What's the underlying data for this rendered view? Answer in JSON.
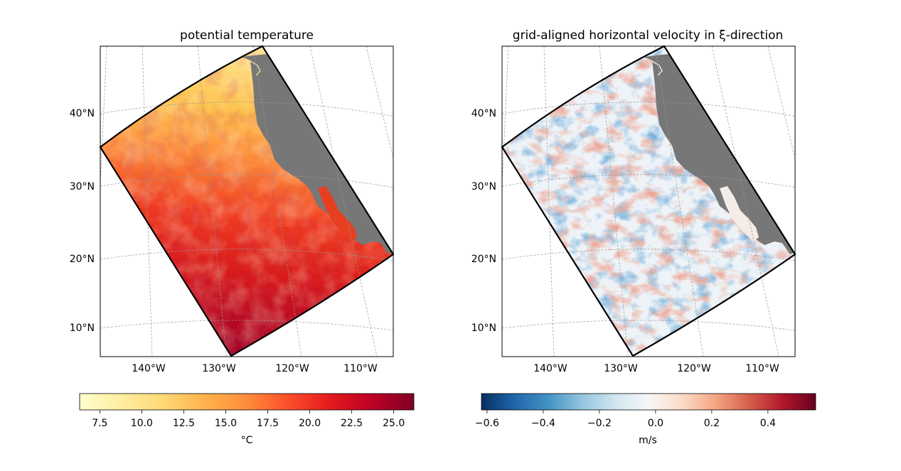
{
  "panels": [
    {
      "title": "potential temperature",
      "lat_labels": [
        "40°N",
        "30°N",
        "20°N",
        "10°N"
      ],
      "lon_labels": [
        "140°W",
        "130°W",
        "120°W",
        "110°W"
      ],
      "colorbar": {
        "ticks": [
          "7.5",
          "10.0",
          "12.5",
          "15.0",
          "17.5",
          "20.0",
          "22.5",
          "25.0"
        ],
        "tick_values": [
          7.5,
          10.0,
          12.5,
          15.0,
          17.5,
          20.0,
          22.5,
          25.0
        ],
        "range": [
          6.3,
          26.2
        ],
        "label": "°C",
        "colormap": "YlOrRd",
        "colors": [
          "#ffffcc",
          "#ffeda0",
          "#fed976",
          "#feb24c",
          "#fd8d3c",
          "#fc4e2a",
          "#e31a1c",
          "#bd0026",
          "#800026"
        ]
      }
    },
    {
      "title": "grid-aligned horizontal velocity in ξ-direction",
      "lat_labels": [
        "40°N",
        "30°N",
        "20°N",
        "10°N"
      ],
      "lon_labels": [
        "140°W",
        "130°W",
        "120°W",
        "110°W"
      ],
      "colorbar": {
        "ticks": [
          "−0.6",
          "−0.4",
          "−0.2",
          "0.0",
          "0.2",
          "0.4"
        ],
        "tick_values": [
          -0.6,
          -0.4,
          -0.2,
          0.0,
          0.2,
          0.4
        ],
        "range": [
          -0.62,
          0.57
        ],
        "label": "m/s",
        "colormap": "RdBu_r",
        "colors": [
          "#053061",
          "#2166ac",
          "#4393c3",
          "#92c5de",
          "#d1e5f0",
          "#f7f7f7",
          "#fddbc7",
          "#f4a582",
          "#d6604d",
          "#b2182b",
          "#67001f"
        ]
      }
    }
  ],
  "land_color": "#777777"
}
